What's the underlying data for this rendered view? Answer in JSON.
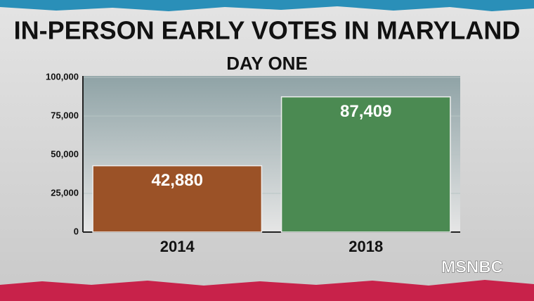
{
  "chart_data": {
    "type": "bar",
    "title": "IN-PERSON EARLY VOTES IN MARYLAND",
    "subtitle": "DAY ONE",
    "categories": [
      "2014",
      "2018"
    ],
    "values": [
      42880,
      87409
    ],
    "value_labels": [
      "42,880",
      "87,409"
    ],
    "colors": [
      "#9b5227",
      "#4b8a52"
    ],
    "ylim": [
      0,
      100000
    ],
    "yticks": [
      0,
      {
        "value": 25000,
        "label": "25,000"
      },
      {
        "value": 50000,
        "label": "50,000"
      },
      {
        "value": 75000,
        "label": "75,000"
      },
      {
        "value": 100000,
        "label": "100,000"
      }
    ],
    "grid": true
  },
  "network": "MSNBC"
}
